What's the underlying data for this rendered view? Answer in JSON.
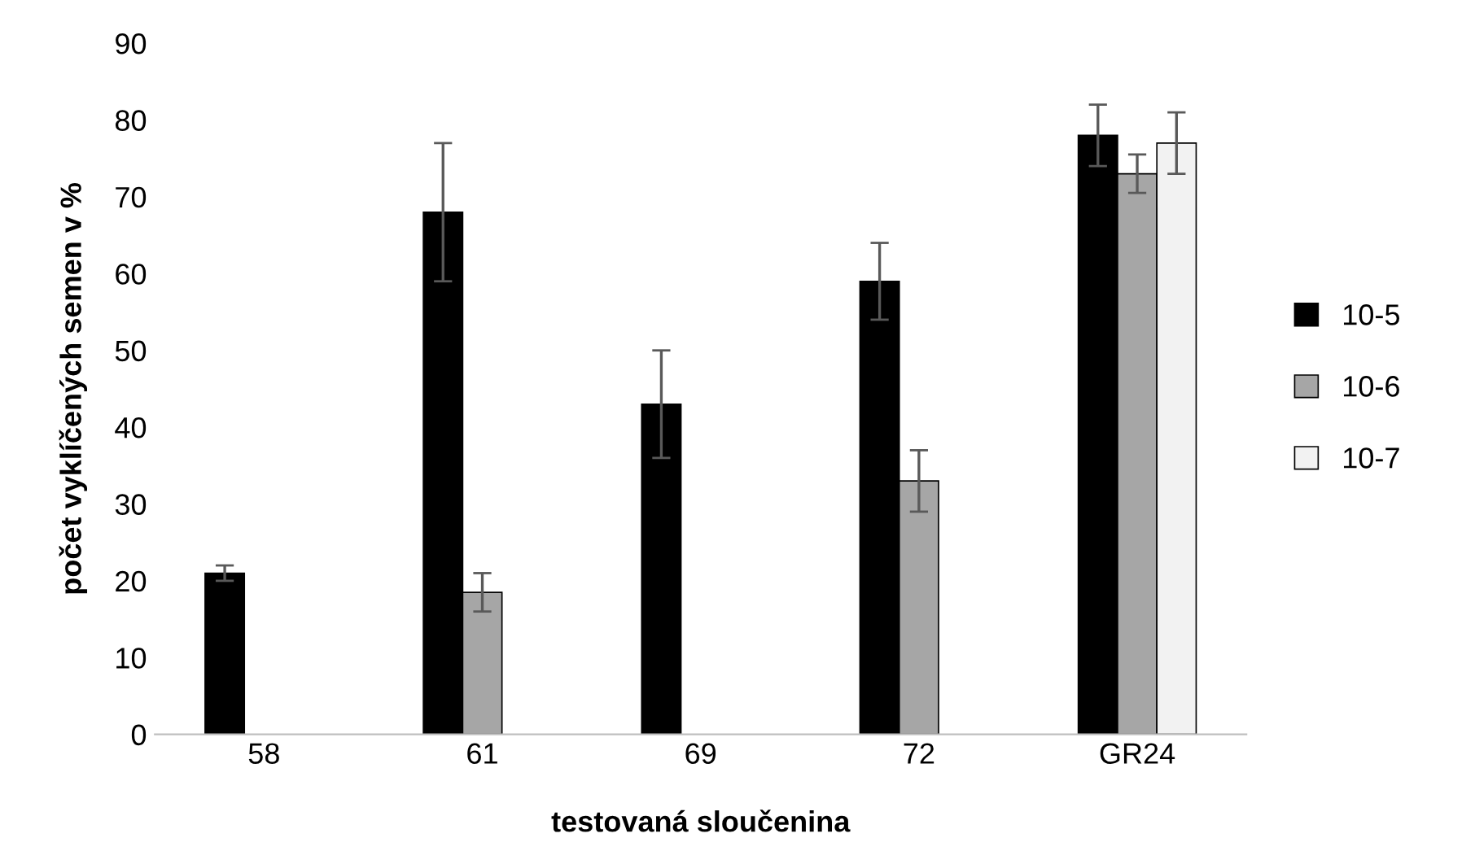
{
  "chart_data": {
    "type": "bar",
    "xlabel": "testovaná sloučenina",
    "ylabel": "počet vyklíčených semen v %",
    "categories": [
      "58",
      "61",
      "69",
      "72",
      "GR24"
    ],
    "series": [
      {
        "name": "10-5",
        "color": "#000000",
        "values": [
          21,
          68,
          43,
          59,
          78
        ],
        "errors": [
          1,
          9,
          7,
          5,
          4
        ]
      },
      {
        "name": "10-6",
        "color": "#a6a6a6",
        "values": [
          0,
          18.5,
          0,
          33,
          73
        ],
        "errors": [
          null,
          2.5,
          null,
          4,
          2.5
        ]
      },
      {
        "name": "10-7",
        "color": "#f2f2f2",
        "values": [
          0,
          0,
          0,
          0,
          77
        ],
        "errors": [
          null,
          null,
          null,
          null,
          4
        ]
      }
    ],
    "ylim": [
      0,
      90
    ],
    "yticks": [
      0,
      10,
      20,
      30,
      40,
      50,
      60,
      70,
      80,
      90
    ],
    "grid": false,
    "legend": "right"
  }
}
